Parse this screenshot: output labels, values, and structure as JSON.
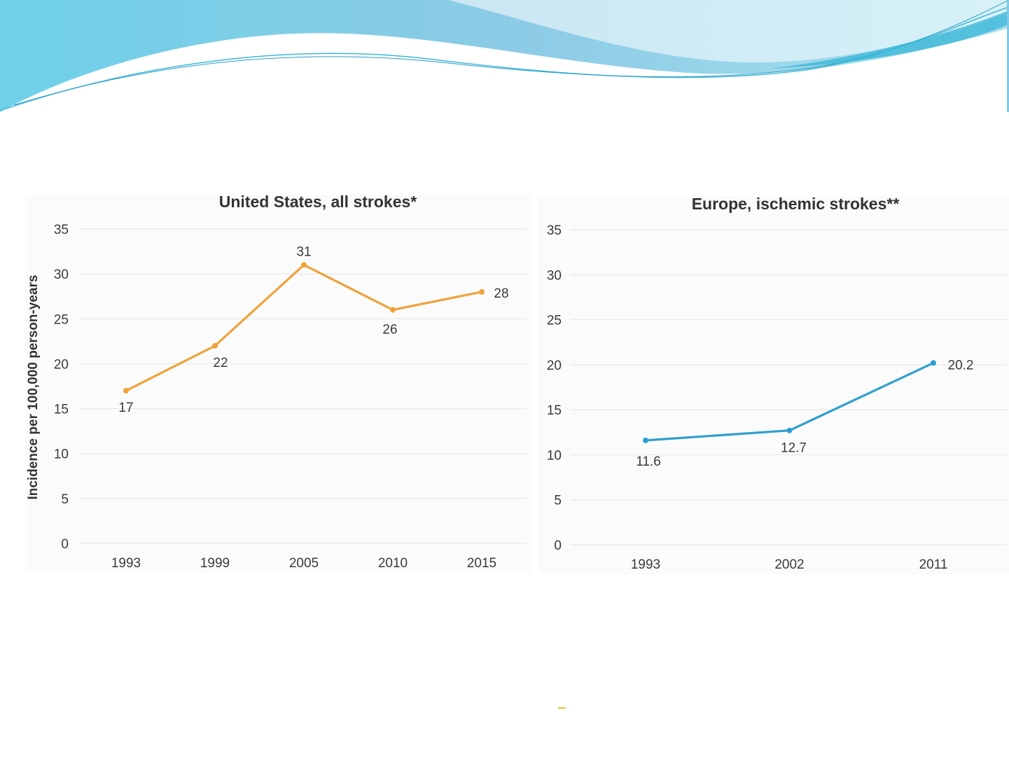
{
  "colors": {
    "us_series": "#f0a23a",
    "eu_series": "#2e9fd0",
    "header_wave_a": "#7fc8e6",
    "header_wave_b": "#9ad8ec",
    "header_accent": "#3fb8d8",
    "footer_dash": "#e8c43a"
  },
  "chart_data": [
    {
      "type": "line",
      "title": "United States, all strokes*",
      "ylabel": "Incidence per 100,000 person-years",
      "xlabel": "",
      "categories": [
        "1993",
        "1999",
        "2005",
        "2010",
        "2015"
      ],
      "series": [
        {
          "values": [
            17,
            22,
            31,
            26,
            28
          ],
          "labels": [
            "17",
            "22",
            "31",
            "26",
            "28"
          ]
        }
      ],
      "ylim": [
        0,
        35
      ],
      "yticks": [
        "0",
        "5",
        "10",
        "15",
        "20",
        "25",
        "30",
        "35"
      ],
      "grid": true,
      "legend": "none"
    },
    {
      "type": "line",
      "title": "Europe, ischemic strokes**",
      "ylabel": "",
      "xlabel": "",
      "categories": [
        "1993",
        "2002",
        "2011"
      ],
      "series": [
        {
          "values": [
            11.6,
            12.7,
            20.2
          ],
          "labels": [
            "11.6",
            "12.7",
            "20.2"
          ]
        }
      ],
      "ylim": [
        0,
        35
      ],
      "yticks": [
        "0",
        "5",
        "10",
        "15",
        "20",
        "25",
        "30",
        "35"
      ],
      "grid": true,
      "legend": "none"
    }
  ]
}
